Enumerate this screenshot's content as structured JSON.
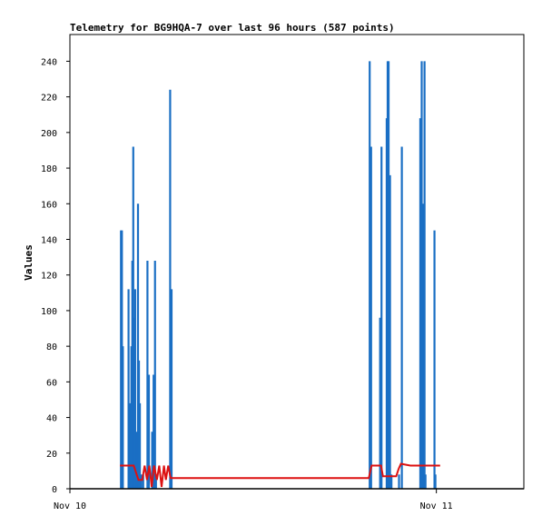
{
  "chart_data": {
    "type": "line",
    "title": "Telemetry for BG9HQA-7 over last 96 hours (587 points)",
    "xlabel": "",
    "ylabel": "Values",
    "ylim": [
      0,
      255
    ],
    "y_ticks": [
      0,
      20,
      40,
      60,
      80,
      100,
      120,
      140,
      160,
      180,
      200,
      220,
      240
    ],
    "x_axis": {
      "unit": "hours",
      "range": [
        0,
        96
      ],
      "ticks": [
        {
          "x": 0,
          "label": "Nov 10"
        },
        {
          "x": 77.5,
          "label": "Nov 11"
        }
      ]
    },
    "legend": "none",
    "grid": false,
    "series": [
      {
        "color": "#1a6fc4",
        "style": "spikes",
        "x": [
          10.8,
          11.0,
          11.2,
          12.4,
          12.7,
          13.0,
          13.2,
          13.4,
          13.6,
          13.8,
          14.1,
          14.4,
          14.6,
          14.8,
          15.1,
          15.5,
          16.4,
          16.7,
          17.4,
          17.7,
          18.0,
          18.2,
          21.2,
          21.5,
          63.4,
          63.7,
          65.6,
          65.9,
          67.0,
          67.2,
          67.4,
          67.7,
          68.0,
          69.6,
          70.2,
          74.1,
          74.4,
          74.7,
          75.0,
          75.2,
          77.1,
          77.3
        ],
        "values": [
          145,
          145,
          80,
          112,
          48,
          80,
          128,
          192,
          96,
          112,
          32,
          160,
          72,
          48,
          8,
          8,
          128,
          64,
          32,
          64,
          128,
          8,
          224,
          112,
          240,
          192,
          96,
          192,
          208,
          240,
          240,
          176,
          8,
          8,
          192,
          208,
          240,
          160,
          240,
          8,
          145,
          8
        ]
      },
      {
        "color": "#dd1111",
        "style": "line",
        "x": [
          10.6,
          13.5,
          14.5,
          15.3,
          15.8,
          16.3,
          16.8,
          17.3,
          17.8,
          18.4,
          18.9,
          19.4,
          19.9,
          20.3,
          20.8,
          21.3,
          21.8,
          63.2,
          63.8,
          65.8,
          66.2,
          67.5,
          69.0,
          69.5,
          70.0,
          72.0,
          75.0,
          78.3
        ],
        "values": [
          13,
          13,
          5,
          5,
          13,
          5,
          13,
          1,
          13,
          5,
          13,
          1,
          13,
          5,
          13,
          6,
          6,
          6,
          13,
          13,
          7,
          7,
          7,
          11,
          14,
          13,
          13,
          13
        ]
      },
      {
        "color": "#000000",
        "style": "line",
        "x": [
          0.0,
          96.0
        ],
        "values": [
          0,
          0
        ]
      }
    ]
  }
}
